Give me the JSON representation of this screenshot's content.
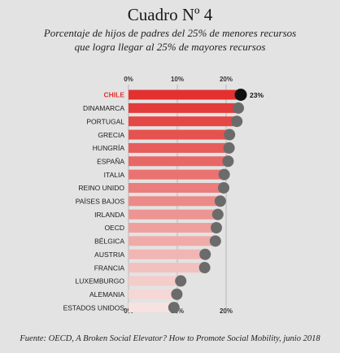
{
  "header": {
    "title": "Cuadro Nº 4",
    "subtitle_line1": "Porcentaje de hijos de padres del 25% de menores recursos",
    "subtitle_line2": "que logra llegar al 25% de mayores recursos"
  },
  "footer": {
    "source": "Fuente: OECD, A Broken Social Elevator? How to Promote Social Mobility, junio 2018"
  },
  "colors": {
    "highlight": "#e2312f",
    "bar_top": "#e2312f",
    "bar_bottom": "#f6e2e0",
    "dot": "#6b6b6b",
    "dot_highlight": "#111111"
  },
  "chart_data": {
    "type": "bar",
    "orientation": "horizontal",
    "xlim": [
      0,
      23
    ],
    "x_ticks": [
      "0%",
      "10%",
      "20%"
    ],
    "grid": true,
    "highlight": {
      "category": "CHILE",
      "label": "23%"
    },
    "categories": [
      "CHILE",
      "DINAMARCA",
      "PORTUGAL",
      "GRECIA",
      "HUNGRÍA",
      "ESPAÑA",
      "ITALIA",
      "REINO UNIDO",
      "PAÍSES BAJOS",
      "IRLANDA",
      "OECD",
      "BÉLGICA",
      "AUSTRIA",
      "FRANCIA",
      "LUXEMBURGO",
      "ALEMANIA",
      "ESTADOS UNIDOS"
    ],
    "values": [
      23,
      22.5,
      22.2,
      20.7,
      20.6,
      20.4,
      19.6,
      19.5,
      18.8,
      18.3,
      18.0,
      17.8,
      15.7,
      15.6,
      10.7,
      9.9,
      9.3
    ]
  }
}
